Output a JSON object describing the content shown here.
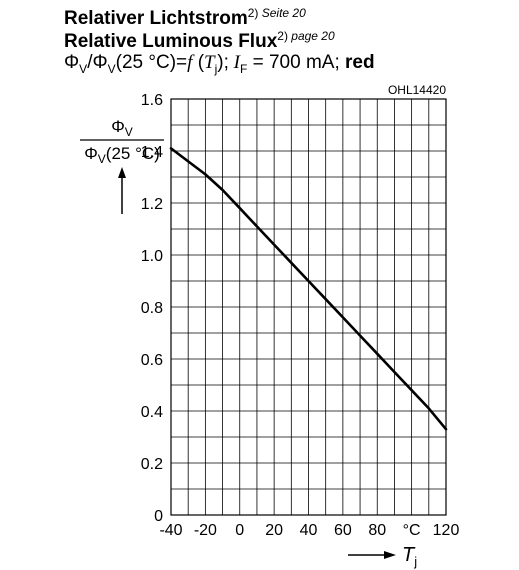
{
  "header": {
    "title_de": "Relativer Lichtstrom",
    "title_de_ref": "2)",
    "title_de_page": "Seite 20",
    "title_en": "Relative Luminous Flux",
    "title_en_ref": "2)",
    "title_en_page": "page 20",
    "formula_main": "Φ",
    "formula_sub1": "V",
    "formula_mid": "/Φ",
    "formula_sub2": "V",
    "formula_temp": "(25 °C)=",
    "formula_f": "f",
    "formula_paren_open": " (",
    "formula_T": "T",
    "formula_T_sub": "j",
    "formula_paren_close": ");",
    "formula_I": " I",
    "formula_I_sub": "F",
    "formula_current": " = 700 mA;",
    "formula_color": " red",
    "figure_code": "OHL14420"
  },
  "chart_data": {
    "type": "line",
    "ylabel_numerator": "Φ",
    "ylabel_numerator_sub": "V",
    "ylabel_denominator": "Φ",
    "ylabel_denominator_sub": "V",
    "ylabel_denominator_rest": "(25 °C)",
    "xlabel": "T",
    "xlabel_sub": "j",
    "x_unit": "°C",
    "xlim": [
      -40,
      120
    ],
    "ylim": [
      0,
      1.6
    ],
    "x_ticks": [
      -40,
      -20,
      0,
      20,
      40,
      60,
      80,
      100,
      120
    ],
    "x_tick_labels": [
      "-40",
      "-20",
      "0",
      "20",
      "40",
      "60",
      "80",
      "°C",
      "120"
    ],
    "y_ticks": [
      0,
      0.2,
      0.4,
      0.6,
      0.8,
      1.0,
      1.2,
      1.4,
      1.6
    ],
    "y_tick_labels": [
      "0",
      "0.2",
      "0.4",
      "0.6",
      "0.8",
      "1.0",
      "1.2",
      "1.4",
      "1.6"
    ],
    "x_minor_step": 10,
    "y_minor_step": 0.1,
    "grid": true,
    "series": [
      {
        "color": "#000000",
        "x": [
          -40,
          -30,
          -20,
          -10,
          0,
          10,
          20,
          30,
          40,
          50,
          60,
          70,
          80,
          90,
          100,
          110,
          120
        ],
        "y": [
          1.41,
          1.36,
          1.31,
          1.25,
          1.18,
          1.11,
          1.04,
          0.97,
          0.9,
          0.83,
          0.76,
          0.69,
          0.62,
          0.55,
          0.48,
          0.41,
          0.33
        ]
      }
    ]
  }
}
